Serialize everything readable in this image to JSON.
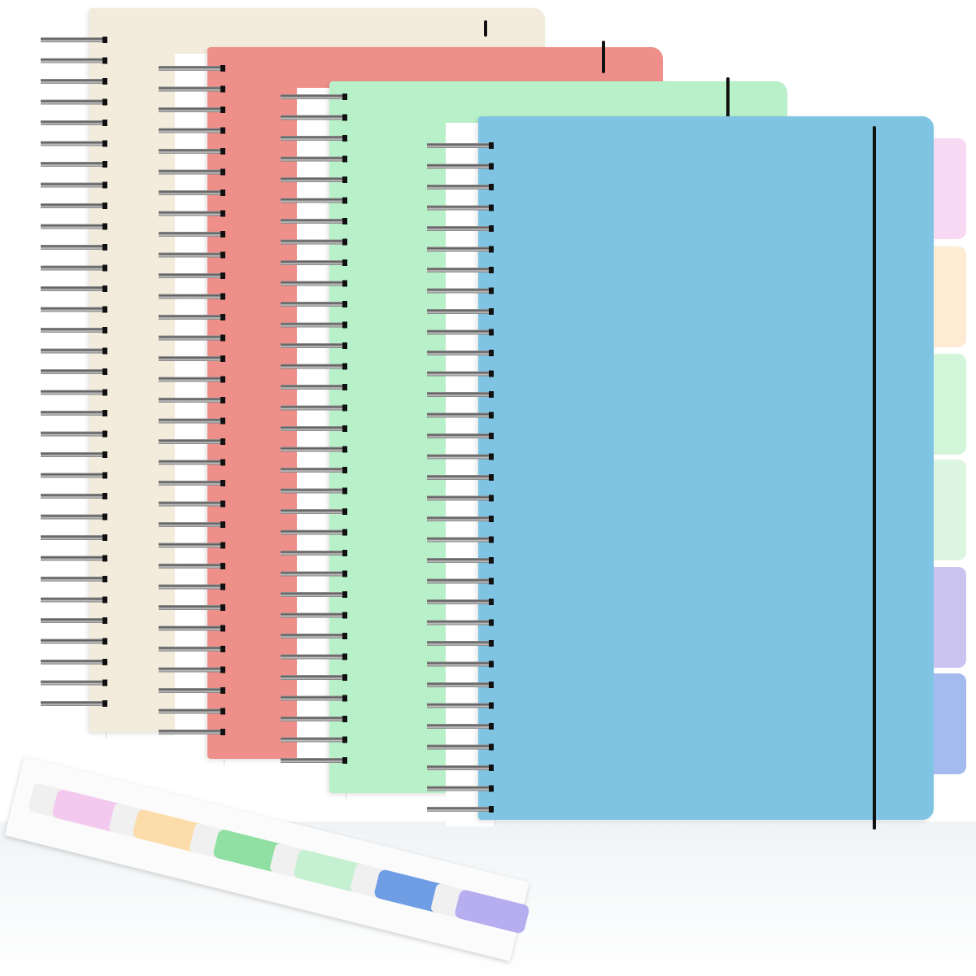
{
  "notebooks": [
    {
      "name": "beige-notebook",
      "color": "#f3ecdc"
    },
    {
      "name": "red-notebook",
      "color": "#ef8f8a"
    },
    {
      "name": "green-notebook",
      "color": "#b8f0c9"
    },
    {
      "name": "blue-notebook",
      "color": "#80c4e4"
    }
  ],
  "divider_tabs": [
    "#f8d9f3",
    "#fdebd3",
    "#d3f6da",
    "#ddf6e2",
    "#cbc4f0",
    "#a3bbee"
  ],
  "sticky_flags": [
    "#f4c9ef",
    "#fbdcaa",
    "#8fe0a2",
    "#c6f0d2",
    "#6f9de4",
    "#b7aef0"
  ]
}
